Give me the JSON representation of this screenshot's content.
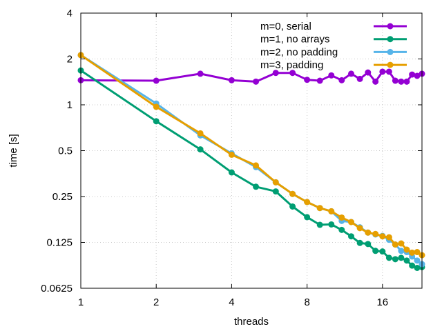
{
  "chart_data": {
    "type": "line",
    "xlabel": "threads",
    "ylabel": "time [s]",
    "xscale": "log2",
    "yscale": "log2",
    "xlim": [
      1,
      23
    ],
    "ylim": [
      0.0625,
      4
    ],
    "xticks": [
      1,
      2,
      4,
      8,
      16
    ],
    "xtick_labels": [
      "1",
      "2",
      "4",
      "8",
      "16"
    ],
    "yticks": [
      0.0625,
      0.125,
      0.25,
      0.5,
      1,
      2,
      4
    ],
    "ytick_labels": [
      "0.0625",
      "0.125",
      "0.25",
      "0.5",
      "1",
      "2",
      "4"
    ],
    "grid": true,
    "legend_position": "top-right",
    "x": [
      1,
      2,
      3,
      4,
      5,
      6,
      7,
      8,
      9,
      10,
      11,
      12,
      13,
      14,
      15,
      16,
      17,
      18,
      19,
      20,
      21,
      22,
      23
    ],
    "series": [
      {
        "name": "m=0, serial",
        "color": "#9400d3",
        "values": [
          1.45,
          1.44,
          1.6,
          1.45,
          1.42,
          1.62,
          1.62,
          1.46,
          1.44,
          1.56,
          1.45,
          1.6,
          1.48,
          1.63,
          1.42,
          1.65,
          1.65,
          1.44,
          1.42,
          1.42,
          1.58,
          1.55,
          1.6
        ]
      },
      {
        "name": "m=1, no arrays",
        "color": "#009e73",
        "values": [
          1.68,
          0.78,
          0.51,
          0.36,
          0.29,
          0.27,
          0.215,
          0.183,
          0.163,
          0.164,
          0.151,
          0.137,
          0.124,
          0.122,
          0.11,
          0.109,
          0.099,
          0.097,
          0.099,
          0.095,
          0.088,
          0.085,
          0.086
        ]
      },
      {
        "name": "m=2, no padding",
        "color": "#56b4e9",
        "values": [
          2.12,
          1.02,
          0.63,
          0.48,
          0.39,
          0.31,
          0.26,
          0.23,
          0.21,
          0.2,
          0.173,
          0.17,
          0.157,
          0.145,
          0.141,
          0.138,
          0.13,
          0.121,
          0.11,
          0.108,
          0.101,
          0.095,
          0.09
        ]
      },
      {
        "name": "m=3, padding",
        "color": "#e69f00",
        "values": [
          2.12,
          0.97,
          0.65,
          0.47,
          0.4,
          0.31,
          0.26,
          0.23,
          0.21,
          0.2,
          0.182,
          0.17,
          0.155,
          0.145,
          0.142,
          0.137,
          0.135,
          0.121,
          0.123,
          0.112,
          0.107,
          0.108,
          0.103
        ]
      }
    ]
  }
}
